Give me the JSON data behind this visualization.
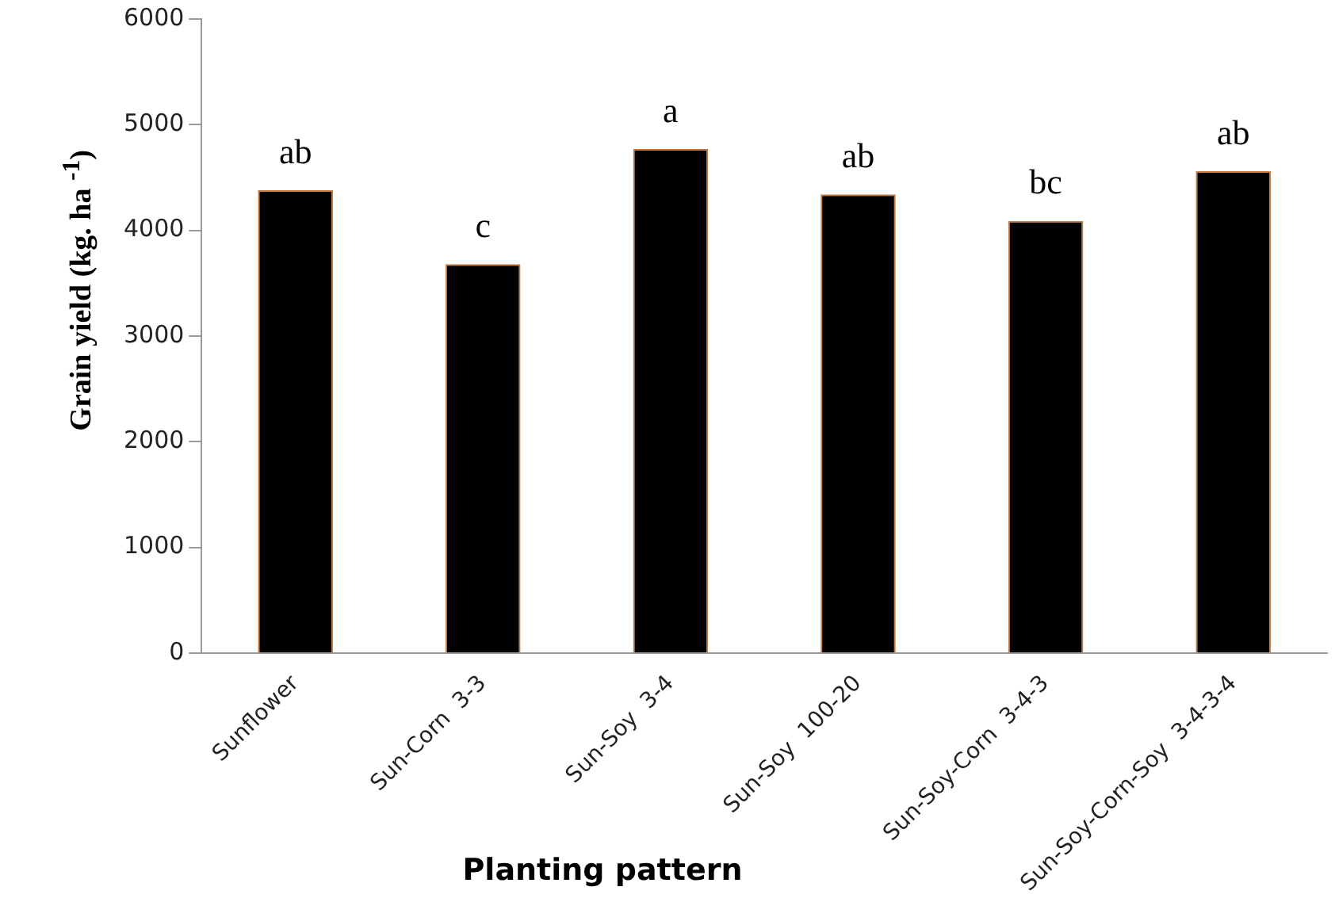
{
  "chart_data": {
    "type": "bar",
    "xlabel": "Planting pattern",
    "ylabel": "Grain yield (kg. ha $^{-1}$)",
    "categories": [
      "Sunflower",
      "Sun-Corn  3-3",
      "Sun-Soy  3-4",
      "Sun-Soy  100-20",
      "Sun-Soy-Corn  3-4-3",
      "Sun-Soy-Corn-Soy  3-4-3-4"
    ],
    "values": [
      4380,
      3680,
      4770,
      4340,
      4090,
      4560
    ],
    "color": "#000000",
    "ylim": [
      0,
      6000
    ],
    "yticks": [
      0,
      1000,
      2000,
      3000,
      4000,
      5000,
      6000
    ],
    "grid": false,
    "legend": false,
    "annotations": [
      {
        "text": "ab",
        "x": "Sunflower",
        "y": 4380
      },
      {
        "text": "c",
        "x": "Sun-Corn  3-3",
        "y": 3680
      },
      {
        "text": "a",
        "x": "Sun-Soy  3-4",
        "y": 4770
      },
      {
        "text": "ab",
        "x": "Sun-Soy  100-20",
        "y": 4340
      },
      {
        "text": "bc",
        "x": "Sun-Soy-Corn  3-4-3",
        "y": 4090
      },
      {
        "text": "ab",
        "x": "Sun-Soy-Corn-Soy  3-4-3-4",
        "y": 4560
      }
    ]
  }
}
